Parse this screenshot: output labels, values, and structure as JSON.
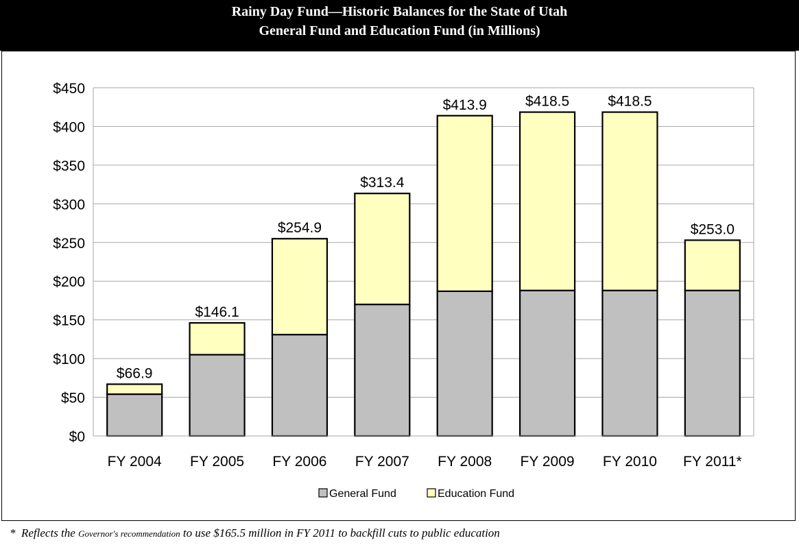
{
  "title": {
    "line1": "Rainy Day Fund—Historic Balances for the State of Utah",
    "line2": "General Fund and Education Fund (in Millions)"
  },
  "footnote": {
    "marker": "*",
    "part1": "Reflects the",
    "part2": "Governor's recommendation",
    "part3": "to use $165.5 million in FY 2011 to backfill cuts to public education"
  },
  "colors": {
    "general_fund": "#c0c0c0",
    "education_fund": "#ffffc0",
    "grid": "#a6a6a6",
    "outline": "#000000"
  },
  "chart_data": {
    "type": "bar",
    "stacked": true,
    "categories": [
      "FY 2004",
      "FY 2005",
      "FY 2006",
      "FY 2007",
      "FY 2008",
      "FY 2009",
      "FY 2010",
      "FY 2011*"
    ],
    "series": [
      {
        "name": "General Fund",
        "values": [
          54,
          105,
          131,
          170,
          187,
          188,
          188,
          188
        ]
      },
      {
        "name": "Education Fund",
        "values": [
          12.9,
          41.1,
          123.9,
          143.4,
          226.9,
          230.5,
          230.5,
          65.0
        ]
      }
    ],
    "totals_labels": [
      "$66.9",
      "$146.1",
      "$254.9",
      "$313.4",
      "$413.9",
      "$418.5",
      "$418.5",
      "$253.0"
    ],
    "y_ticks": [
      "$0",
      "$50",
      "$100",
      "$150",
      "$200",
      "$250",
      "$300",
      "$350",
      "$400",
      "$450"
    ],
    "ylim": [
      0,
      450
    ],
    "ystep": 50,
    "grid": true,
    "legend_position": "bottom"
  }
}
